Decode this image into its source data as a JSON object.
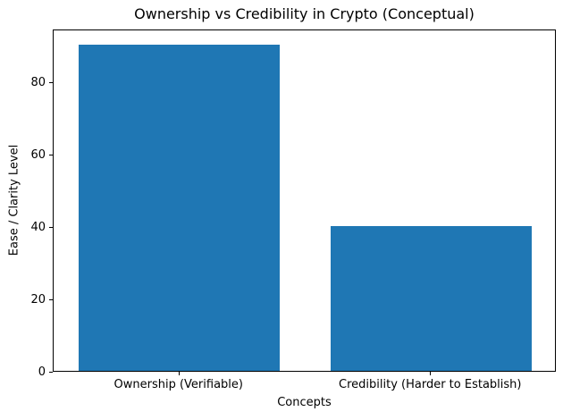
{
  "chart_data": {
    "type": "bar",
    "title": "Ownership vs Credibility in Crypto (Conceptual)",
    "categories": [
      "Ownership (Verifiable)",
      "Credibility (Harder to Establish)"
    ],
    "values": [
      90,
      40
    ],
    "xlabel": "Concepts",
    "ylabel": "Ease / Clarity Level",
    "ylim": [
      0,
      94.5
    ],
    "yticks": [
      0,
      20,
      40,
      60,
      80
    ],
    "bar_color": "#1f77b4",
    "bar_width_fraction": 0.8,
    "grid": false,
    "legend": "none",
    "background_color": "#ffffff",
    "spine_color": "#000000",
    "text_color": "#000000"
  }
}
